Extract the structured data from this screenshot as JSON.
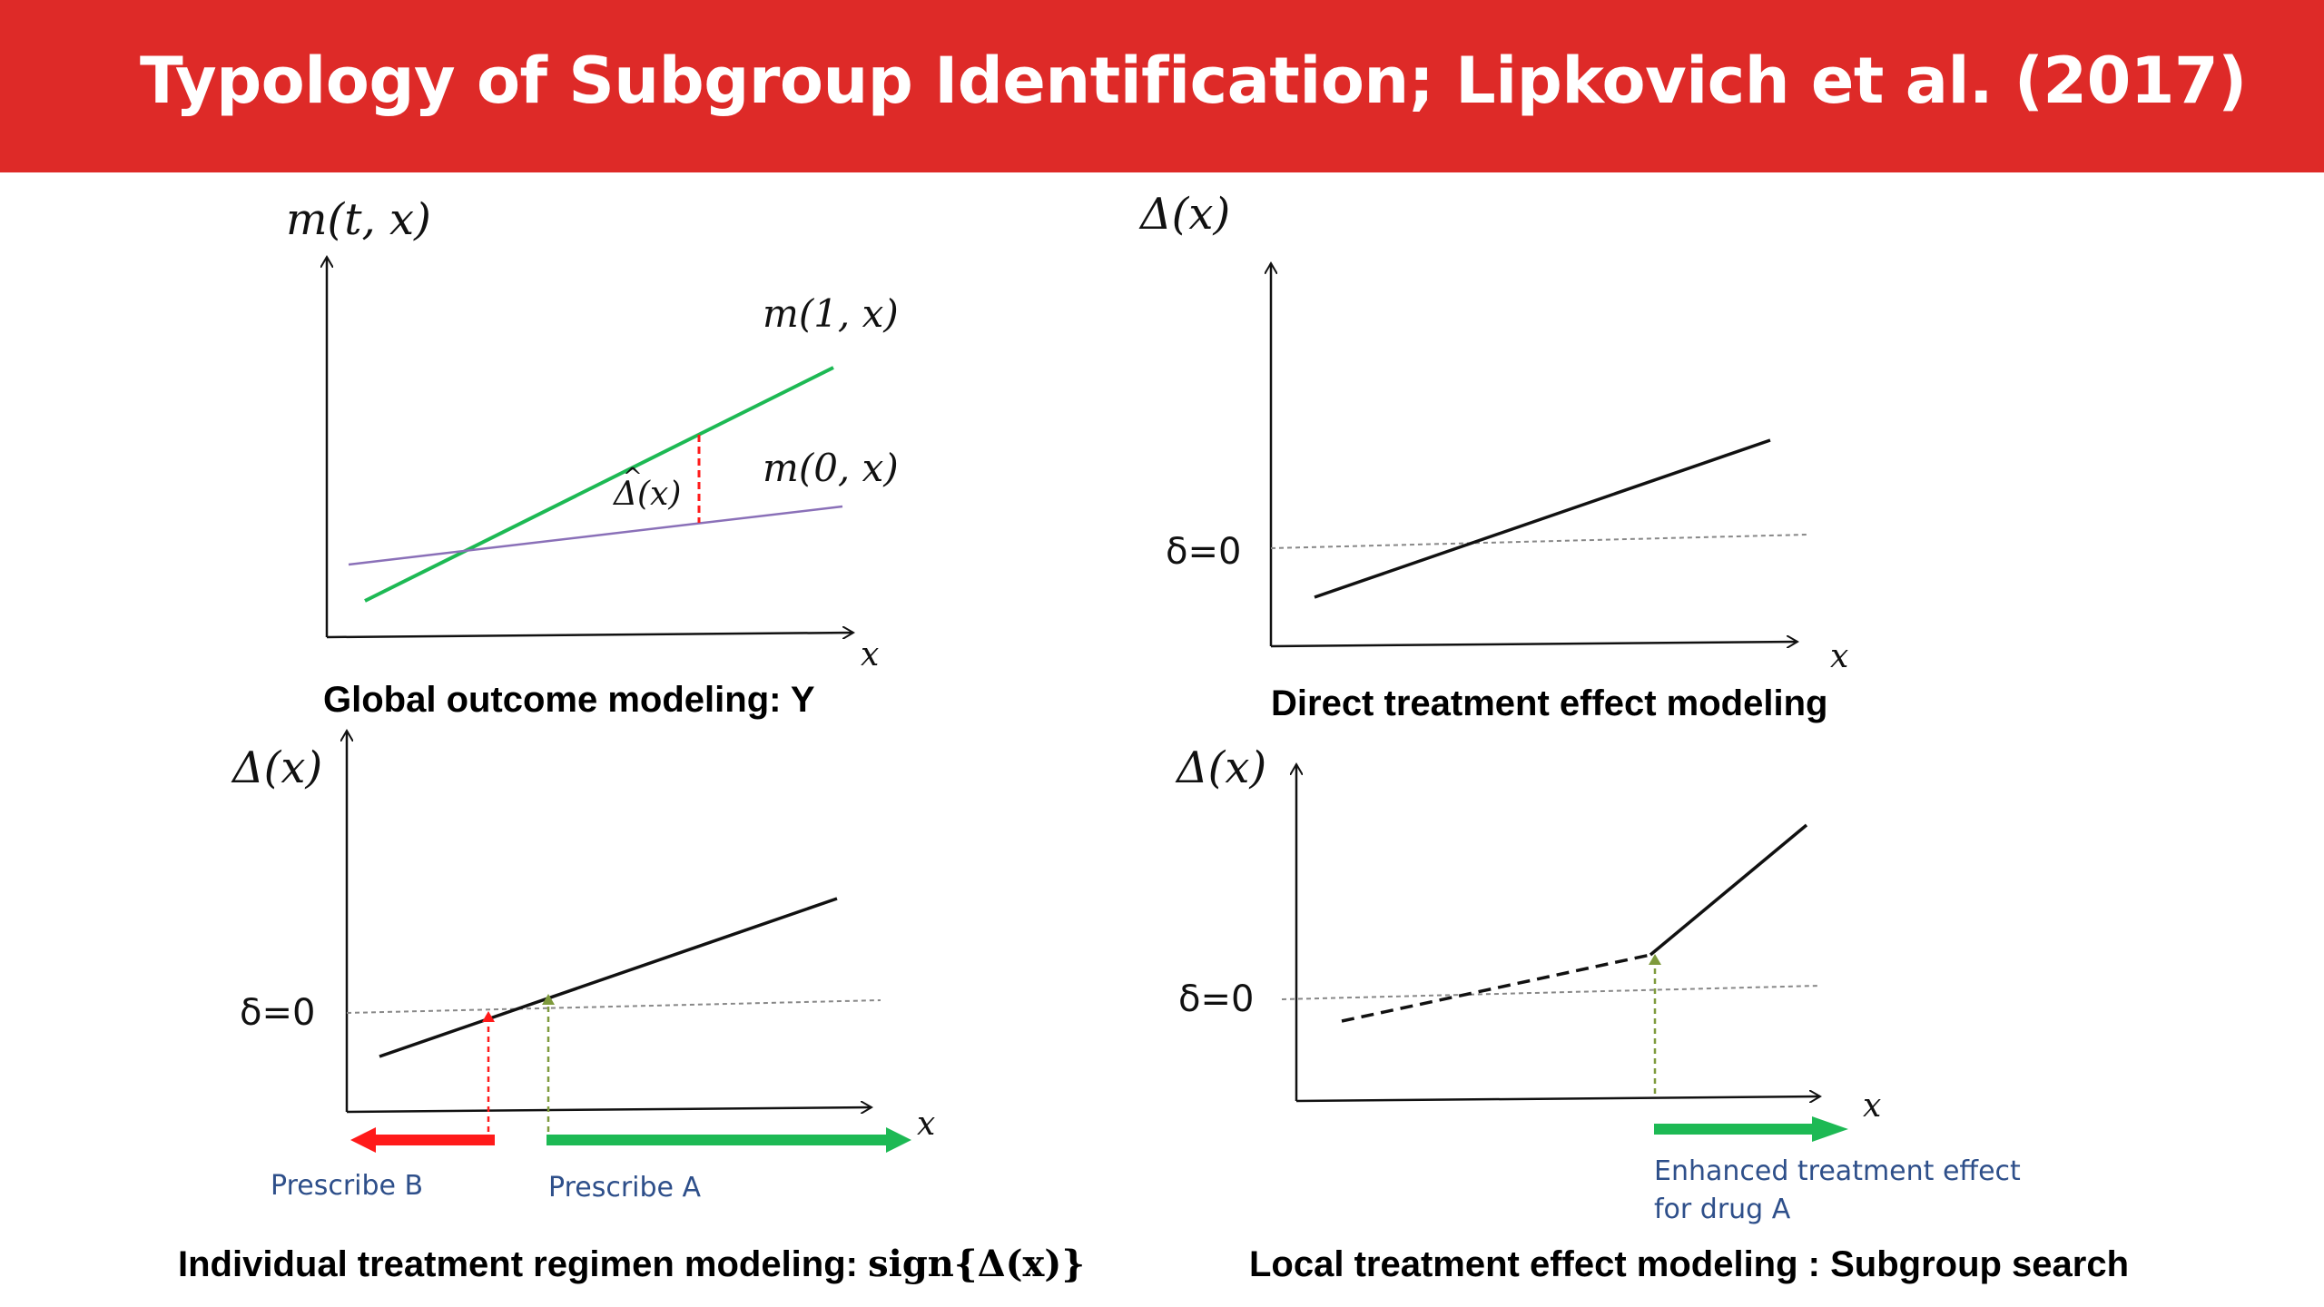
{
  "title": "Typology of Subgroup Identification; Lipkovich et al. (2017)",
  "colors": {
    "header": "#de2a28",
    "treatment_line": "#1db954",
    "control_line": "#8a70b8",
    "highlight_red": "#ff1a1a",
    "arrow_green": "#1db954",
    "arrow_olive": "#7e9a3c",
    "note_text": "#2e4f8a"
  },
  "panels": {
    "global": {
      "y_label": "m(t, x)",
      "x_label": "x",
      "line_treated": "m(1, x)",
      "line_control": "m(0, x)",
      "gap_label": "Δ(x)",
      "caption": "Global outcome modeling: Y"
    },
    "direct": {
      "y_label": "Δ(x)",
      "x_label": "x",
      "threshold": "δ=0",
      "caption": "Direct treatment effect modeling"
    },
    "individual": {
      "y_label": "Δ(x)",
      "x_label": "x",
      "threshold": "δ=0",
      "left_arrow": "Prescribe B",
      "right_arrow": "Prescribe A",
      "caption_text": "Individual treatment regimen modeling: ",
      "caption_formula": "sign{Δ(x)}"
    },
    "local": {
      "y_label": "Δ(x)",
      "x_label": "x",
      "threshold": "δ=0",
      "note_line1": "Enhanced treatment effect",
      "note_line2": "for drug A",
      "caption": "Local treatment effect modeling : Subgroup search"
    }
  }
}
